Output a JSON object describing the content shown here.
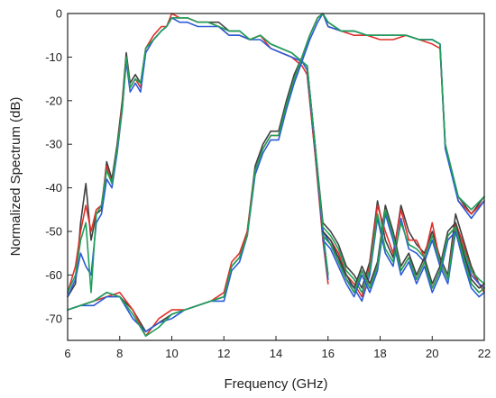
{
  "chart_data": {
    "type": "line",
    "title": "",
    "xlabel": "Frequency (GHz)",
    "ylabel": "Normalized Spectrum (dB)",
    "xlim": [
      6,
      22
    ],
    "ylim": [
      -75,
      0
    ],
    "xticks": [
      6,
      8,
      10,
      12,
      14,
      16,
      18,
      20,
      22
    ],
    "yticks": [
      0,
      -10,
      -20,
      -30,
      -40,
      -50,
      -60,
      -70
    ],
    "grid": false,
    "legend": "none",
    "colors": [
      "#404040",
      "#e0302a",
      "#2a5bd7",
      "#1fa05a"
    ],
    "series": [
      {
        "group": "A",
        "x": [
          6.0,
          6.3,
          6.5,
          6.7,
          6.9,
          7.1,
          7.3,
          7.5,
          7.7,
          7.9,
          8.1,
          8.25,
          8.4,
          8.6,
          8.8,
          9.0,
          9.3,
          9.6,
          9.8,
          10.0,
          10.3,
          10.6,
          11.0,
          11.4,
          11.8,
          12.2,
          12.6,
          13.0,
          13.4,
          13.8,
          14.2,
          14.6,
          15.0,
          15.2,
          15.5,
          15.8,
          16.0
        ],
        "y": [
          [
            -65,
            -62,
            -48,
            -40,
            -52,
            -46,
            -45,
            -34,
            -38,
            -30,
            -20,
            -9,
            -16,
            -14,
            -16,
            -8,
            -6,
            -4,
            -3,
            -1,
            -1,
            -1,
            -2,
            -2,
            -2,
            -4,
            -4,
            -6,
            -5,
            -7,
            -8,
            -9,
            -11,
            -12,
            -30,
            -50,
            -60
          ]
        ]
      }
    ],
    "curves": {
      "band_low": {
        "x": [
          6.0,
          6.3,
          6.5,
          6.7,
          6.9,
          7.1,
          7.3,
          7.5,
          7.7,
          7.9,
          8.1,
          8.25,
          8.4,
          8.6,
          8.8,
          9.0,
          9.3,
          9.6,
          9.8,
          10.0,
          10.3,
          10.6,
          11.0,
          11.4,
          11.8,
          12.2,
          12.6,
          13.0,
          13.4,
          13.8,
          14.2,
          14.6,
          15.0,
          15.2,
          15.5,
          15.8,
          16.0
        ],
        "values": [
          [
            -65,
            -62,
            -48,
            -39,
            -52,
            -46,
            -45,
            -34,
            -38,
            -30,
            -20,
            -9,
            -16,
            -14,
            -16,
            -8,
            -6,
            -4,
            -3,
            -1,
            -1,
            -1,
            -2,
            -2,
            -2,
            -4,
            -4,
            -6,
            -5,
            -7,
            -8,
            -9,
            -11,
            -12,
            -30,
            -50,
            -60
          ],
          [
            -64,
            -58,
            -50,
            -44,
            -50,
            -45,
            -44,
            -35,
            -39,
            -31,
            -21,
            -10,
            -17,
            -15,
            -17,
            -8,
            -5,
            -3,
            -3,
            0,
            -1,
            -1,
            -2,
            -2,
            -3,
            -5,
            -5,
            -6,
            -5,
            -8,
            -9,
            -10,
            -12,
            -14,
            -32,
            -52,
            -62
          ],
          [
            -65,
            -61,
            -55,
            -58,
            -60,
            -48,
            -46,
            -38,
            -40,
            -32,
            -22,
            -11,
            -18,
            -16,
            -18,
            -9,
            -6,
            -4,
            -3,
            -1,
            -2,
            -2,
            -3,
            -3,
            -3,
            -5,
            -5,
            -6,
            -6,
            -8,
            -9,
            -10,
            -11,
            -13,
            -31,
            -51,
            -61
          ],
          [
            -64,
            -60,
            -52,
            -48,
            -64,
            -46,
            -44,
            -36,
            -39,
            -31,
            -22,
            -10,
            -17,
            -15,
            -16,
            -8,
            -6,
            -4,
            -3,
            -1,
            -1,
            -1,
            -2,
            -2,
            -3,
            -4,
            -4,
            -6,
            -5,
            -7,
            -8,
            -9,
            -11,
            -12,
            -30,
            -50,
            -60
          ]
        ]
      },
      "band_high": {
        "x": [
          6.0,
          6.5,
          7.0,
          7.5,
          8.0,
          8.5,
          9.0,
          9.5,
          10.0,
          10.5,
          11.0,
          11.5,
          12.0,
          12.3,
          12.6,
          12.9,
          13.2,
          13.5,
          13.8,
          14.1,
          14.4,
          14.7,
          15.0,
          15.3,
          15.6,
          15.8,
          16.0,
          16.5,
          17.0,
          17.5,
          18.0,
          18.5,
          19.0,
          19.5,
          20.0,
          20.3,
          20.5,
          21.0,
          21.5,
          22.0
        ],
        "values": [
          [
            -68,
            -67,
            -66,
            -64,
            -65,
            -68,
            -73,
            -71,
            -69,
            -68,
            -67,
            -66,
            -65,
            -58,
            -56,
            -50,
            -35,
            -30,
            -27,
            -27,
            -20,
            -14,
            -10,
            -5,
            -1,
            0,
            -2,
            -4,
            -4,
            -5,
            -5,
            -5,
            -5,
            -6,
            -6,
            -7,
            -30,
            -42,
            -46,
            -42
          ],
          [
            -68,
            -67,
            -66,
            -65,
            -64,
            -68,
            -74,
            -70,
            -68,
            -68,
            -67,
            -66,
            -64,
            -57,
            -55,
            -50,
            -36,
            -31,
            -28,
            -28,
            -21,
            -15,
            -10,
            -5,
            -1,
            0,
            -3,
            -4,
            -5,
            -5,
            -6,
            -6,
            -5,
            -6,
            -7,
            -8,
            -30,
            -43,
            -46,
            -43
          ],
          [
            -68,
            -67,
            -67,
            -65,
            -65,
            -70,
            -73,
            -71,
            -70,
            -68,
            -67,
            -66,
            -66,
            -59,
            -57,
            -51,
            -37,
            -32,
            -29,
            -29,
            -22,
            -16,
            -11,
            -6,
            -2,
            0,
            -3,
            -4,
            -4,
            -5,
            -5,
            -5,
            -5,
            -6,
            -6,
            -7,
            -31,
            -43,
            -47,
            -43
          ],
          [
            -68,
            -67,
            -66,
            -64,
            -65,
            -69,
            -74,
            -72,
            -69,
            -68,
            -67,
            -66,
            -65,
            -58,
            -56,
            -51,
            -36,
            -31,
            -28,
            -28,
            -21,
            -15,
            -10,
            -5,
            -1,
            0,
            -2,
            -4,
            -4,
            -5,
            -5,
            -5,
            -5,
            -6,
            -6,
            -7,
            -30,
            -42,
            -45,
            -42
          ]
        ]
      },
      "tail_low": {
        "x": [
          15.2,
          15.5,
          15.8,
          16.1,
          16.4,
          16.7,
          17.0,
          17.3,
          17.6,
          17.9,
          18.2,
          18.5,
          18.8,
          19.1,
          19.4,
          19.7,
          20.0,
          20.3,
          20.6,
          20.9,
          21.2,
          21.5,
          21.8,
          22.0
        ],
        "values": [
          [
            -12,
            -30,
            -48,
            -50,
            -53,
            -58,
            -60,
            -63,
            -57,
            -43,
            -52,
            -56,
            -44,
            -50,
            -53,
            -55,
            -50,
            -56,
            -60,
            -46,
            -52,
            -58,
            -62,
            -63
          ],
          [
            -14,
            -32,
            -50,
            -52,
            -55,
            -60,
            -62,
            -65,
            -58,
            -44,
            -50,
            -55,
            -45,
            -52,
            -52,
            -56,
            -48,
            -57,
            -61,
            -48,
            -53,
            -59,
            -62,
            -64
          ],
          [
            -13,
            -31,
            -50,
            -53,
            -56,
            -61,
            -63,
            -66,
            -60,
            -47,
            -55,
            -58,
            -47,
            -54,
            -55,
            -57,
            -52,
            -58,
            -62,
            -50,
            -55,
            -60,
            -62,
            -63
          ],
          [
            -12,
            -30,
            -49,
            -51,
            -54,
            -59,
            -61,
            -64,
            -59,
            -46,
            -54,
            -57,
            -48,
            -53,
            -54,
            -56,
            -51,
            -57,
            -61,
            -49,
            -54,
            -59,
            -61,
            -62
          ]
        ]
      },
      "tail_high": {
        "x": [
          15.8,
          16.1,
          16.4,
          16.7,
          17.0,
          17.3,
          17.6,
          17.9,
          18.2,
          18.5,
          18.8,
          19.1,
          19.4,
          19.7,
          20.0,
          20.3,
          20.6,
          20.9,
          21.2,
          21.5,
          21.8,
          22.0
        ],
        "values": [
          [
            -50,
            -52,
            -56,
            -60,
            -63,
            -58,
            -62,
            -57,
            -44,
            -50,
            -58,
            -55,
            -60,
            -56,
            -62,
            -58,
            -50,
            -48,
            -55,
            -61,
            -63,
            -62
          ],
          [
            -51,
            -53,
            -57,
            -61,
            -64,
            -59,
            -63,
            -58,
            -45,
            -51,
            -59,
            -56,
            -61,
            -57,
            -63,
            -59,
            -51,
            -49,
            -56,
            -62,
            -64,
            -63
          ],
          [
            -52,
            -54,
            -58,
            -62,
            -65,
            -60,
            -64,
            -59,
            -46,
            -52,
            -60,
            -57,
            -62,
            -58,
            -64,
            -60,
            -52,
            -50,
            -57,
            -63,
            -65,
            -64
          ],
          [
            -51,
            -53,
            -57,
            -61,
            -64,
            -59,
            -63,
            -58,
            -45,
            -51,
            -59,
            -56,
            -61,
            -57,
            -63,
            -59,
            -51,
            -49,
            -56,
            -62,
            -64,
            -63
          ]
        ]
      }
    }
  }
}
